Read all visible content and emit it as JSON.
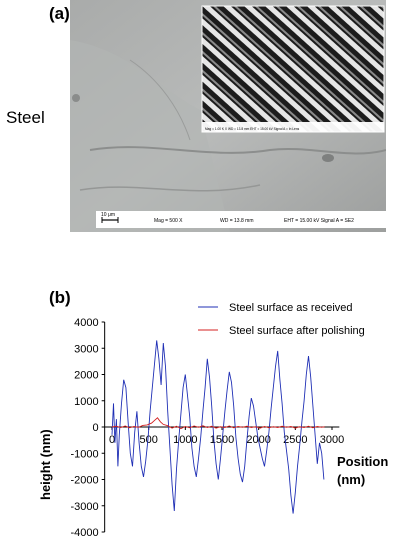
{
  "panel_a": {
    "label": "(a)",
    "side_label": "Steel",
    "scale_bar": "10 μm",
    "info": {
      "mag": "Mag =   500 X",
      "wd": "WD = 13.8 mm",
      "eht": "EHT = 15.00 kV  Signal A = SE2"
    },
    "inset_info": "Mag = 1.00 K X   WD = 13.8 mm   EHT = 15.00 kV   Signal A = In Lens"
  },
  "panel_b": {
    "label": "(b)"
  },
  "chart_data": {
    "type": "line",
    "xlabel": "Position (nm)",
    "ylabel": "height (nm)",
    "xlim": [
      -100,
      3100
    ],
    "ylim": [
      -4000,
      4000
    ],
    "x_ticks": [
      "0",
      "500",
      "1000",
      "1500",
      "2000",
      "2500",
      "3000"
    ],
    "y_ticks": [
      "4000",
      "3000",
      "2000",
      "1000",
      "0",
      "-1000",
      "-2000",
      "-3000",
      "-4000"
    ],
    "grid": false,
    "legend_position": "top-right",
    "series": [
      {
        "name": "Steel surface as received",
        "color": "#1f2fb5",
        "x": [
          0,
          20,
          40,
          60,
          80,
          100,
          130,
          160,
          190,
          220,
          250,
          280,
          310,
          340,
          370,
          400,
          430,
          460,
          490,
          520,
          550,
          580,
          610,
          640,
          670,
          700,
          730,
          760,
          790,
          820,
          850,
          880,
          910,
          940,
          970,
          1000,
          1030,
          1060,
          1090,
          1120,
          1150,
          1180,
          1210,
          1240,
          1270,
          1300,
          1330,
          1360,
          1390,
          1420,
          1450,
          1480,
          1510,
          1540,
          1570,
          1600,
          1630,
          1660,
          1690,
          1720,
          1750,
          1780,
          1810,
          1840,
          1870,
          1900,
          1930,
          1960,
          1990,
          2020,
          2050,
          2080,
          2110,
          2140,
          2170,
          2200,
          2230,
          2260,
          2290,
          2320,
          2350,
          2380,
          2410,
          2440,
          2470,
          2500,
          2530,
          2560,
          2590,
          2620,
          2650,
          2680,
          2710,
          2740,
          2770,
          2800,
          2830,
          2860,
          2890
        ],
        "y": [
          -300,
          900,
          -600,
          300,
          -1500,
          -300,
          900,
          1800,
          1500,
          200,
          -1000,
          -1500,
          -200,
          600,
          -600,
          -1500,
          -1900,
          -1300,
          -500,
          600,
          1500,
          2400,
          3300,
          2600,
          1600,
          3200,
          2300,
          600,
          -800,
          -2200,
          -3200,
          -1600,
          -500,
          500,
          1500,
          2000,
          1200,
          400,
          -800,
          -1500,
          -1900,
          -1200,
          -400,
          600,
          1500,
          2600,
          1900,
          800,
          -500,
          -1400,
          -2000,
          -1200,
          -300,
          600,
          1400,
          2100,
          1700,
          800,
          -400,
          -1200,
          -1800,
          -2100,
          -1500,
          -500,
          400,
          1100,
          800,
          200,
          -400,
          -800,
          -1200,
          -1500,
          -900,
          -200,
          700,
          1500,
          2300,
          2900,
          1800,
          900,
          -200,
          -900,
          -1600,
          -2600,
          -3300,
          -2500,
          -1500,
          -700,
          200,
          1000,
          2000,
          2700,
          1900,
          800,
          -300,
          -1400,
          -600,
          -1000,
          -2000
        ]
      },
      {
        "name": "Steel surface after polishing",
        "color": "#d42020",
        "x": [
          0,
          60,
          120,
          180,
          240,
          300,
          360,
          420,
          480,
          540,
          580,
          620,
          660,
          700,
          760,
          820,
          880,
          940,
          1000,
          1060,
          1120,
          1180,
          1240,
          1300,
          1360,
          1420,
          1480,
          1540,
          1600,
          1660,
          1720,
          1780,
          1840,
          1900,
          1960,
          2020,
          2080,
          2140,
          2200,
          2260,
          2320,
          2380,
          2440,
          2500,
          2560,
          2620,
          2680,
          2740,
          2800,
          2860,
          2900
        ],
        "y": [
          0,
          30,
          -20,
          40,
          -30,
          20,
          -10,
          60,
          80,
          150,
          250,
          350,
          200,
          100,
          50,
          -40,
          30,
          -60,
          20,
          -30,
          40,
          -10,
          50,
          -20,
          30,
          -40,
          10,
          -20,
          40,
          -30,
          20,
          -10,
          30,
          -20,
          10,
          -40,
          20,
          -30,
          10,
          -20,
          30,
          -10,
          20,
          -40,
          10,
          -20,
          30,
          -30,
          20,
          -10,
          10
        ]
      }
    ]
  }
}
